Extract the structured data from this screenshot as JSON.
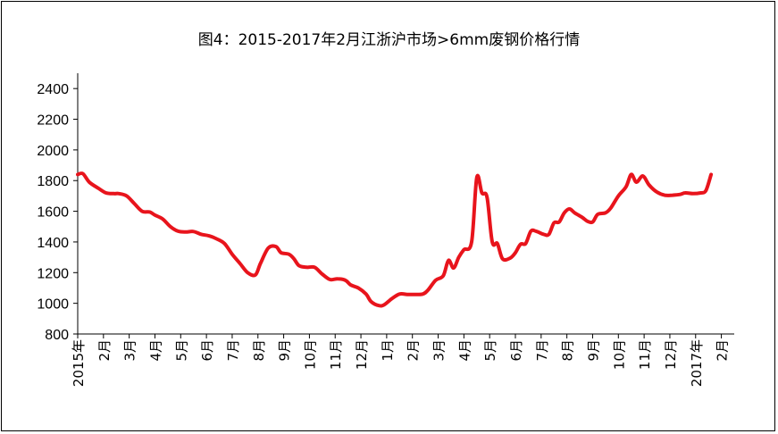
{
  "chart_data": {
    "type": "line",
    "title": "图4：2015-2017年2月江浙沪市场>6mm废钢价格行情",
    "xlabel": "",
    "ylabel": "",
    "ylim": [
      800,
      2500
    ],
    "yticks": [
      800,
      1000,
      1200,
      1400,
      1600,
      1800,
      2000,
      2200,
      2400
    ],
    "xlim": [
      0,
      25.5
    ],
    "xticks": [
      {
        "x": 0,
        "label": "2015年"
      },
      {
        "x": 1,
        "label": "2月"
      },
      {
        "x": 2,
        "label": "3月"
      },
      {
        "x": 3,
        "label": "4月"
      },
      {
        "x": 4,
        "label": "5月"
      },
      {
        "x": 5,
        "label": "6月"
      },
      {
        "x": 6,
        "label": "7月"
      },
      {
        "x": 7,
        "label": "8月"
      },
      {
        "x": 8,
        "label": "9月"
      },
      {
        "x": 9,
        "label": "10月"
      },
      {
        "x": 10,
        "label": "11月"
      },
      {
        "x": 11,
        "label": "12月"
      },
      {
        "x": 12,
        "label": "1月"
      },
      {
        "x": 13,
        "label": "2月"
      },
      {
        "x": 14,
        "label": "3月"
      },
      {
        "x": 15,
        "label": "4月"
      },
      {
        "x": 16,
        "label": "5月"
      },
      {
        "x": 17,
        "label": "6月"
      },
      {
        "x": 18,
        "label": "7月"
      },
      {
        "x": 19,
        "label": "8月"
      },
      {
        "x": 20,
        "label": "9月"
      },
      {
        "x": 21,
        "label": "10月"
      },
      {
        "x": 22,
        "label": "11月"
      },
      {
        "x": 23,
        "label": "12月"
      },
      {
        "x": 24,
        "label": "2017年"
      },
      {
        "x": 25,
        "label": "2月"
      }
    ],
    "grid": false,
    "series": [
      {
        "color": "#e8141c",
        "points": [
          [
            0.0,
            1840
          ],
          [
            0.2,
            1845
          ],
          [
            0.45,
            1790
          ],
          [
            0.8,
            1750
          ],
          [
            1.1,
            1720
          ],
          [
            1.4,
            1715
          ],
          [
            1.6,
            1715
          ],
          [
            1.9,
            1700
          ],
          [
            2.2,
            1650
          ],
          [
            2.5,
            1600
          ],
          [
            2.8,
            1595
          ],
          [
            3.0,
            1575
          ],
          [
            3.3,
            1550
          ],
          [
            3.6,
            1500
          ],
          [
            3.9,
            1470
          ],
          [
            4.2,
            1465
          ],
          [
            4.5,
            1468
          ],
          [
            4.8,
            1450
          ],
          [
            5.1,
            1440
          ],
          [
            5.4,
            1420
          ],
          [
            5.7,
            1390
          ],
          [
            6.0,
            1320
          ],
          [
            6.3,
            1260
          ],
          [
            6.6,
            1200
          ],
          [
            6.9,
            1185
          ],
          [
            7.1,
            1260
          ],
          [
            7.4,
            1360
          ],
          [
            7.7,
            1370
          ],
          [
            7.9,
            1330
          ],
          [
            8.2,
            1320
          ],
          [
            8.4,
            1290
          ],
          [
            8.6,
            1245
          ],
          [
            8.9,
            1235
          ],
          [
            9.2,
            1235
          ],
          [
            9.5,
            1190
          ],
          [
            9.8,
            1155
          ],
          [
            10.1,
            1160
          ],
          [
            10.4,
            1150
          ],
          [
            10.6,
            1120
          ],
          [
            10.9,
            1100
          ],
          [
            11.2,
            1060
          ],
          [
            11.4,
            1010
          ],
          [
            11.7,
            985
          ],
          [
            11.9,
            990
          ],
          [
            12.2,
            1030
          ],
          [
            12.5,
            1060
          ],
          [
            12.8,
            1058
          ],
          [
            13.1,
            1058
          ],
          [
            13.4,
            1060
          ],
          [
            13.6,
            1085
          ],
          [
            13.9,
            1150
          ],
          [
            14.2,
            1180
          ],
          [
            14.4,
            1280
          ],
          [
            14.6,
            1230
          ],
          [
            14.8,
            1300
          ],
          [
            15.0,
            1350
          ],
          [
            15.3,
            1400
          ],
          [
            15.5,
            1820
          ],
          [
            15.7,
            1720
          ],
          [
            15.9,
            1690
          ],
          [
            16.1,
            1400
          ],
          [
            16.3,
            1390
          ],
          [
            16.5,
            1290
          ],
          [
            16.8,
            1295
          ],
          [
            17.0,
            1330
          ],
          [
            17.2,
            1385
          ],
          [
            17.4,
            1390
          ],
          [
            17.6,
            1470
          ],
          [
            17.8,
            1470
          ],
          [
            18.1,
            1450
          ],
          [
            18.3,
            1450
          ],
          [
            18.5,
            1525
          ],
          [
            18.7,
            1530
          ],
          [
            18.9,
            1590
          ],
          [
            19.1,
            1615
          ],
          [
            19.3,
            1590
          ],
          [
            19.6,
            1560
          ],
          [
            19.8,
            1535
          ],
          [
            20.0,
            1530
          ],
          [
            20.2,
            1580
          ],
          [
            20.5,
            1590
          ],
          [
            20.7,
            1620
          ],
          [
            21.0,
            1700
          ],
          [
            21.3,
            1760
          ],
          [
            21.5,
            1840
          ],
          [
            21.7,
            1790
          ],
          [
            21.95,
            1830
          ],
          [
            22.2,
            1770
          ],
          [
            22.5,
            1725
          ],
          [
            22.8,
            1705
          ],
          [
            23.1,
            1705
          ],
          [
            23.4,
            1710
          ],
          [
            23.6,
            1720
          ],
          [
            23.9,
            1715
          ],
          [
            24.2,
            1720
          ],
          [
            24.4,
            1735
          ],
          [
            24.6,
            1840
          ]
        ]
      }
    ]
  }
}
